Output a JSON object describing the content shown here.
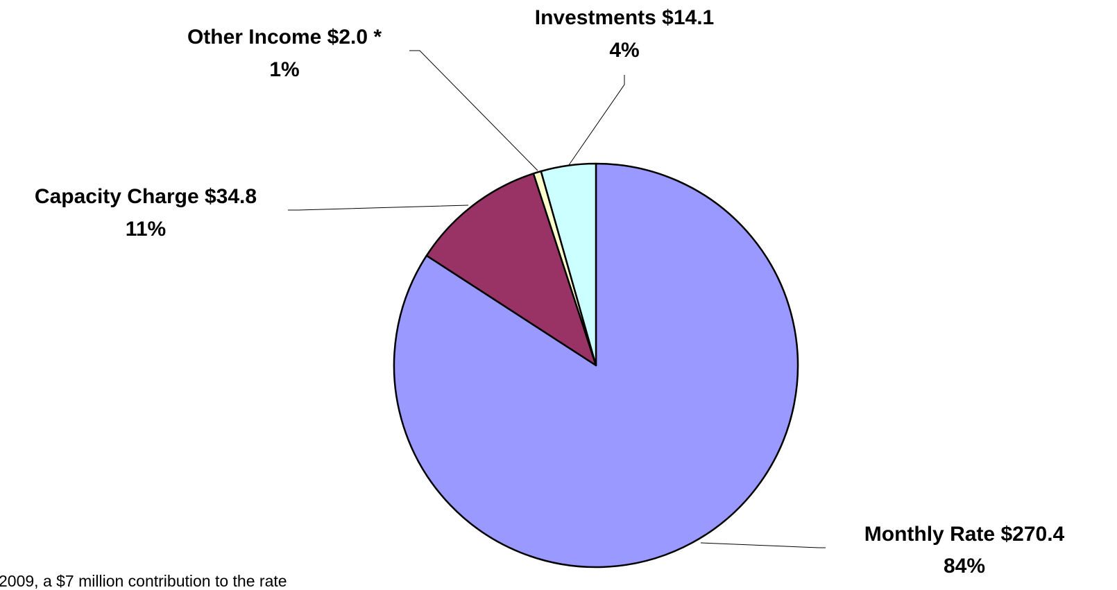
{
  "chart_data": {
    "type": "pie",
    "categories": [
      "Monthly Rate",
      "Capacity Charge",
      "Other Income",
      "Investments"
    ],
    "values": [
      270.4,
      34.8,
      2.0,
      14.1
    ],
    "value_labels": [
      "$270.4",
      "$34.8",
      "$2.0 *",
      "$14.1"
    ],
    "percent_labels": [
      "84%",
      "11%",
      "1%",
      "4%"
    ],
    "colors": [
      "#9999ff",
      "#993366",
      "#ffffcc",
      "#ccffff"
    ],
    "footnote": "2009,  a $7 million contribution to the rate"
  }
}
